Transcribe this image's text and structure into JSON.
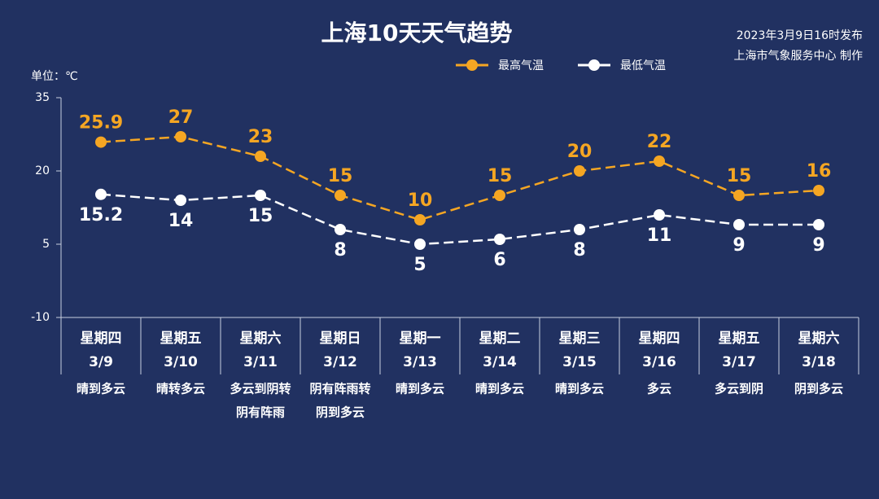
{
  "chart_data": {
    "type": "line",
    "title": "上海10天天气趋势",
    "annotations": [
      "2023年3月9日16时发布",
      "上海市气象服务中心 制作"
    ],
    "y_label": "单位：℃",
    "weekdays": [
      "星期四",
      "星期五",
      "星期六",
      "星期日",
      "星期一",
      "星期二",
      "星期三",
      "星期四",
      "星期五",
      "星期六"
    ],
    "categories": [
      "3/9",
      "3/10",
      "3/11",
      "3/12",
      "3/13",
      "3/14",
      "3/15",
      "3/16",
      "3/17",
      "3/18"
    ],
    "weather": [
      [
        "晴到多云"
      ],
      [
        "晴转多云"
      ],
      [
        "多云到阴转",
        "阴有阵雨"
      ],
      [
        "阴有阵雨转",
        "阴到多云"
      ],
      [
        "晴到多云"
      ],
      [
        "晴到多云"
      ],
      [
        "晴到多云"
      ],
      [
        "多云"
      ],
      [
        "多云到阴"
      ],
      [
        "阴到多云"
      ]
    ],
    "series": [
      {
        "name": "最高气温",
        "color": "#f5a623",
        "values": [
          25.9,
          27,
          23,
          15,
          10,
          15,
          20,
          22,
          15,
          16
        ]
      },
      {
        "name": "最低气温",
        "color": "#ffffff",
        "values": [
          15.2,
          14,
          15,
          8,
          5,
          6,
          8,
          11,
          9,
          9
        ]
      }
    ],
    "ylim": [
      -10,
      35
    ],
    "yticks": [
      -10,
      5,
      20,
      35
    ]
  }
}
